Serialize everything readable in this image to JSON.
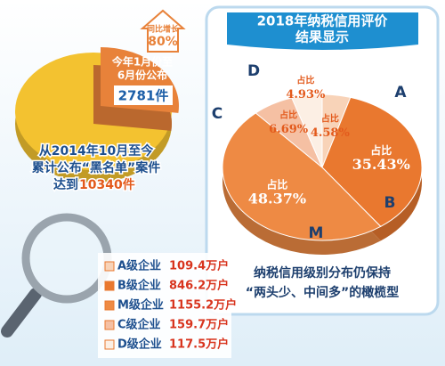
{
  "chart_data": [
    {
      "type": "pie",
      "values": [
        2781,
        10340
      ],
      "value_labels": [
        "2781件",
        "10340件"
      ],
      "colors": [
        "#e8823a",
        "#f3c230"
      ],
      "badge": {
        "title": "同比增长",
        "value_label": "80%"
      },
      "part_caption": [
        "今年1月份至",
        "6月份公布"
      ],
      "total_caption": [
        "从2014年10月至今",
        "累计公布“黑名单”案件",
        "达到"
      ]
    },
    {
      "type": "pie",
      "title": [
        "2018年纳税信用评价",
        "结果显示"
      ],
      "categories": [
        "A",
        "B",
        "M",
        "C",
        "D"
      ],
      "values": [
        4.58,
        35.43,
        48.37,
        6.69,
        4.93
      ],
      "value_labels": [
        "4.58%",
        "35.43%",
        "48.37%",
        "6.69%",
        "4.93%"
      ],
      "slice_label": "占比",
      "colors": [
        "#f8d3b8",
        "#e9782f",
        "#ee8a44",
        "#f5c0a3",
        "#fcefe4"
      ],
      "caption": [
        "纳税信用级别分布仍保持",
        "“两头少、中间多”的橄榄型"
      ]
    }
  ],
  "enterprises": [
    {
      "name": "A级企业",
      "count": "109.4万户"
    },
    {
      "name": "B级企业",
      "count": "846.2万户"
    },
    {
      "name": "M级企业",
      "count": "1155.2万户"
    },
    {
      "name": "C级企业",
      "count": "159.7万户"
    },
    {
      "name": "D级企业",
      "count": "117.5万户"
    }
  ]
}
